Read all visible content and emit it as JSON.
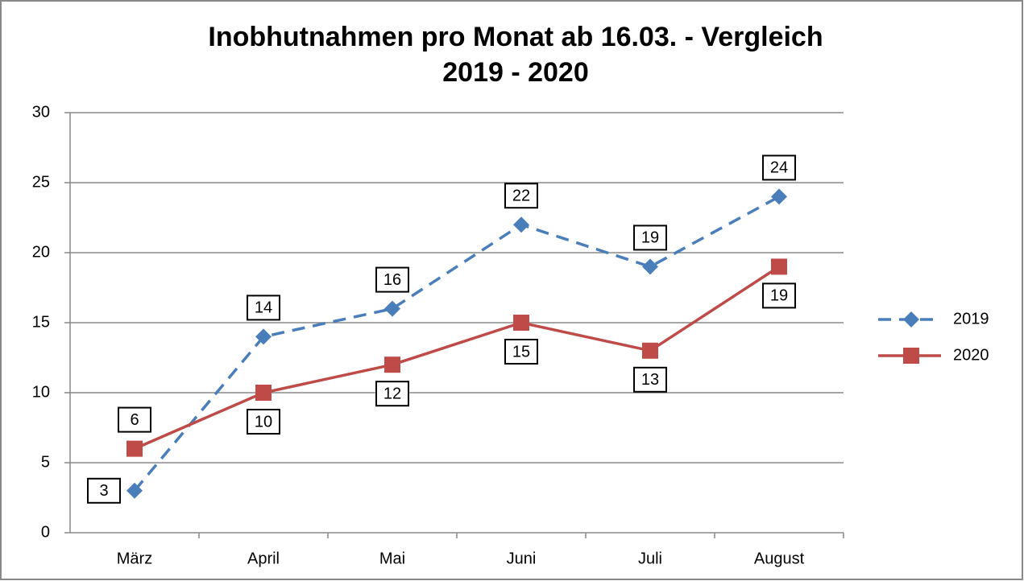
{
  "chart_data": {
    "type": "line",
    "title": [
      "Inobhutnahmen pro Monat ab 16.03. - Vergleich",
      "2019 - 2020"
    ],
    "categories": [
      "März",
      "April",
      "Mai",
      "Juni",
      "Juli",
      "August"
    ],
    "series": [
      {
        "name": "2019",
        "color": "#4a7ebb",
        "dashed": true,
        "marker": "diamond",
        "values": [
          3,
          14,
          16,
          22,
          19,
          24
        ]
      },
      {
        "name": "2020",
        "color": "#be4b48",
        "dashed": false,
        "marker": "square",
        "values": [
          6,
          10,
          12,
          15,
          13,
          19
        ]
      }
    ],
    "ylim": [
      0,
      30
    ],
    "yticks": [
      0,
      5,
      10,
      15,
      20,
      25,
      30
    ],
    "grid": true,
    "legend": "right"
  }
}
